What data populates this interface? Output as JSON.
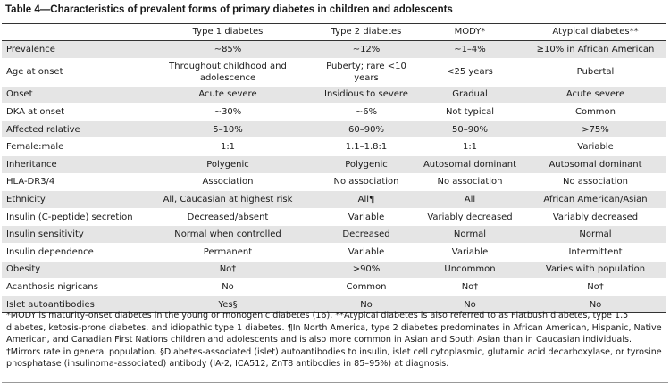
{
  "title": "Table 4—Characteristics of prevalent forms of primary diabetes in children and adolescents",
  "table": {
    "header": [
      "",
      "Type 1 diabetes",
      "Type 2 diabetes",
      "MODY*",
      "Atypical diabetes**"
    ],
    "rows": [
      [
        "Prevalence",
        "∼85%",
        "∼12%",
        "∼1–4%",
        "≥10% in African American"
      ],
      [
        "Age at onset",
        "Throughout childhood and adolescence",
        "Puberty; rare <10 years",
        "<25 years",
        "Pubertal"
      ],
      [
        "Onset",
        "Acute severe",
        "Insidious to severe",
        "Gradual",
        "Acute severe"
      ],
      [
        "DKA at onset",
        "∼30%",
        "∼6%",
        "Not typical",
        "Common"
      ],
      [
        "Affected relative",
        "5–10%",
        "60–90%",
        "50–90%",
        ">75%"
      ],
      [
        "Female:male",
        "1:1",
        "1.1–1.8:1",
        "1:1",
        "Variable"
      ],
      [
        "Inheritance",
        "Polygenic",
        "Polygenic",
        "Autosomal dominant",
        "Autosomal dominant"
      ],
      [
        "HLA-DR3/4",
        "Association",
        "No association",
        "No association",
        "No association"
      ],
      [
        "Ethnicity",
        "All, Caucasian at highest risk",
        "All¶",
        "All",
        "African American/Asian"
      ],
      [
        "Insulin (C-peptide) secretion",
        "Decreased/absent",
        "Variable",
        "Variably decreased",
        "Variably decreased"
      ],
      [
        "Insulin sensitivity",
        "Normal when controlled",
        "Decreased",
        "Normal",
        "Normal"
      ],
      [
        "Insulin dependence",
        "Permanent",
        "Variable",
        "Variable",
        "Intermittent"
      ],
      [
        "Obesity",
        "No†",
        ">90%",
        "Uncommon",
        "Varies with population"
      ],
      [
        "Acanthosis nigricans",
        "No",
        "Common",
        "No†",
        "No†"
      ],
      [
        "Islet autoantibodies",
        "Yes§",
        "No",
        "No",
        "No"
      ]
    ]
  },
  "footnote": "*MODY is maturity-onset diabetes in the young or monogenic diabetes (16). **Atypical diabetes is also referred to as Flatbush diabetes, type 1.5 diabetes, ketosis-prone diabetes, and idiopathic type 1 diabetes. ¶In North America, type 2 diabetes predominates in African American, Hispanic, Native American, and Canadian First Nations children and adolescents and is also more common in Asian and South Asian than in Caucasian individuals. †Mirrors rate in general population. §Diabetes-associated (islet) autoantibodies to insulin, islet cell cytoplasmic, glutamic acid decarboxylase, or tyrosine phosphatase (insulinoma-associated) antibody (IA-2, ICA512, ZnT8 antibodies in 85–95%) at diagnosis."
}
